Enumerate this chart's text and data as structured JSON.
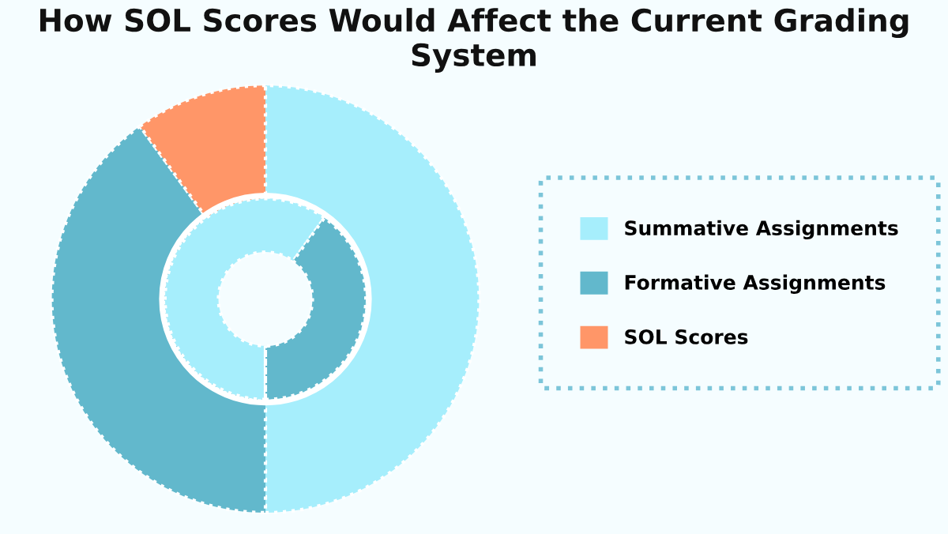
{
  "chart_data": {
    "type": "donut",
    "title": "How SOL Scores Would Affect the Current Grading System",
    "categories": [
      "Summative Assignments",
      "Formative Assignments",
      "SOL Scores"
    ],
    "colors": [
      "#a6eefc",
      "#62b8cc",
      "#ff9668"
    ],
    "series": [
      {
        "values": [
          50,
          40,
          10
        ]
      },
      {
        "values": [
          60,
          40,
          0
        ]
      }
    ],
    "legend": "right"
  }
}
